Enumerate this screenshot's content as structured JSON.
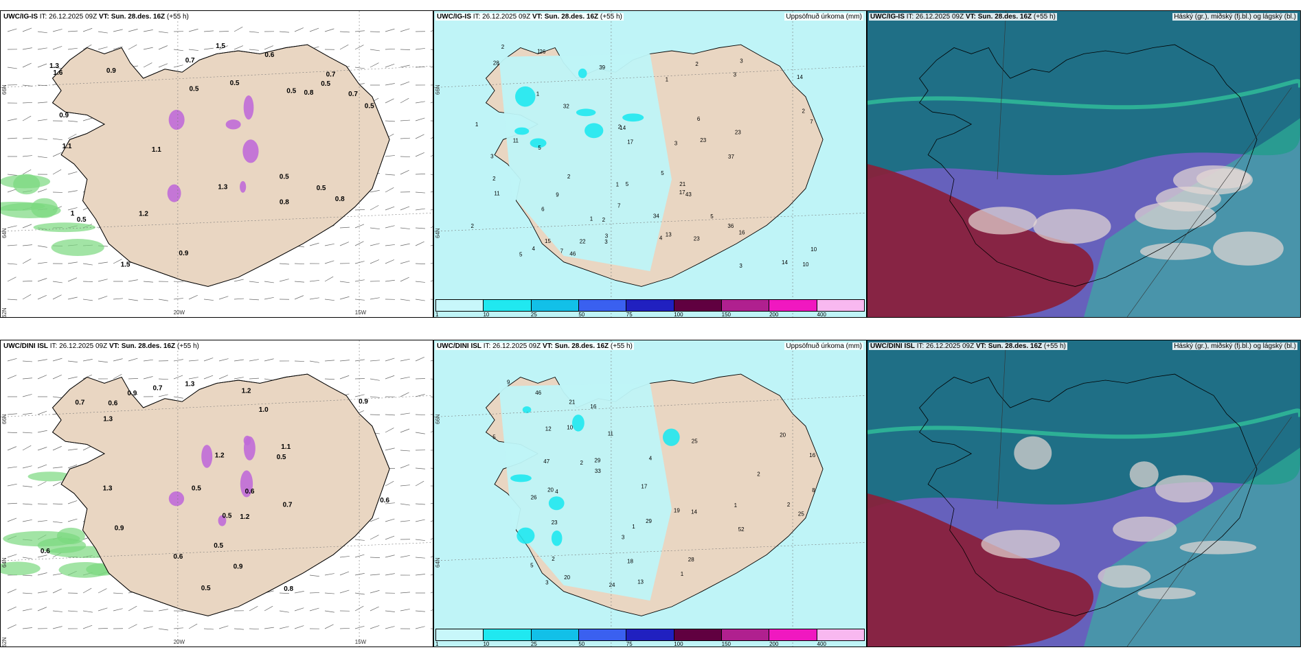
{
  "panels": [
    {
      "model": "UWC/IG-IS",
      "it_label": "IT:",
      "it_value": "26.12.2025 09Z",
      "vt_label": "VT:",
      "vt_value": "Sun. 28.des. 16Z",
      "lead": "(+55 h)",
      "right_title": "",
      "type": "wind",
      "lon_labels": [
        "20W",
        "15W"
      ],
      "lat_labels": [
        "66N",
        "64N",
        "62N"
      ],
      "values": [
        "0.5",
        "0.5",
        "0.5",
        "0.5",
        "0.6",
        "0.8",
        "0.9",
        "0.5",
        "0.7",
        "0.8",
        "1.1",
        "1.2",
        "0.7",
        "0.5",
        "0.9",
        "1",
        "1.3",
        "1.5",
        "0.9",
        "0.8",
        "0.5",
        "1.1",
        "0.7",
        "1.3",
        "1.6",
        "1.5",
        "0.5"
      ]
    },
    {
      "model": "UWC/IG-IS",
      "it_label": "IT:",
      "it_value": "26.12.2025 09Z",
      "vt_label": "VT:",
      "vt_value": "Sun. 28.des. 16Z",
      "lead": "(+55 h)",
      "right_title": "Uppsöfnuð úrkoma (mm)",
      "type": "precip",
      "lon_labels": [],
      "lat_labels": [
        "66N",
        "64N"
      ],
      "values": [
        "1",
        "6",
        "13",
        "3",
        "5",
        "7",
        "5",
        "16",
        "14",
        "14",
        "15",
        "17",
        "21",
        "26",
        "46",
        "4",
        "2",
        "3",
        "3",
        "5",
        "7",
        "11",
        "23",
        "28",
        "22",
        "32",
        "34",
        "23",
        "10",
        "7",
        "5",
        "9",
        "3",
        "2",
        "3",
        "5",
        "6",
        "36",
        "43",
        "37",
        "23",
        "39",
        "17",
        "2",
        "3",
        "1",
        "1",
        "4",
        "2",
        "10",
        "14",
        "11",
        "2",
        "2",
        "3",
        "1",
        "2",
        "2",
        "1",
        "1"
      ]
    },
    {
      "model": "UWC/IG-IS",
      "it_label": "IT:",
      "it_value": "26.12.2025 09Z",
      "vt_label": "VT:",
      "vt_value": "Sun. 28.des. 16Z",
      "lead": "(+55 h)",
      "right_title": "Háský (gr.), miðský (fj.bl.) og lágský (bl.)",
      "type": "cloud",
      "lon_labels": [],
      "lat_labels": [],
      "values": []
    },
    {
      "model": "UWC/DINI ISL",
      "it_label": "IT:",
      "it_value": "26.12.2025 09Z",
      "vt_label": "VT:",
      "vt_value": "Sun. 28.des. 16Z",
      "lead": "(+55 h)",
      "right_title": "",
      "type": "wind",
      "lon_labels": [
        "20W",
        "15W"
      ],
      "lat_labels": [
        "66N",
        "64N",
        "62N"
      ],
      "values": [
        "0.6",
        "0.6",
        "0.9",
        "0.5",
        "1.2",
        "0.6",
        "1.2",
        "0.7",
        "0.5",
        "0.9",
        "0.8",
        "0.5",
        "0.7",
        "0.9",
        "1.3",
        "0.6",
        "0.5",
        "1.1",
        "0.5",
        "0.7",
        "1.0",
        "0.6",
        "1.3",
        "0.9",
        "1.3",
        "1.2"
      ]
    },
    {
      "model": "UWC/DINI ISL",
      "it_label": "IT:",
      "it_value": "26.12.2025 09Z",
      "vt_label": "VT:",
      "vt_value": "Sun. 28.des. 16Z",
      "lead": "(+55 h)",
      "right_title": "Uppsöfnuð úrkoma (mm)",
      "type": "precip",
      "lon_labels": [],
      "lat_labels": [
        "66N",
        "64N"
      ],
      "values": [
        "1",
        "2",
        "3",
        "5",
        "10",
        "29",
        "16",
        "18",
        "20",
        "20",
        "26",
        "29",
        "23",
        "52",
        "24",
        "16",
        "19",
        "21",
        "20",
        "25",
        "17",
        "47",
        "46",
        "33",
        "28",
        "25",
        "12",
        "13",
        "14",
        "11",
        "9",
        "4",
        "2",
        "2",
        "1",
        "5",
        "8",
        "4",
        "3",
        "2",
        "1"
      ]
    },
    {
      "model": "UWC/DINI ISL",
      "it_label": "IT:",
      "it_value": "26.12.2025 09Z",
      "vt_label": "VT:",
      "vt_value": "Sun. 28.des. 16Z",
      "lead": "(+55 h)",
      "right_title": "Háský (gr.), miðský (fj.bl.) og lágský (bl.)",
      "type": "cloud",
      "lon_labels": [],
      "lat_labels": [],
      "values": []
    }
  ],
  "precip_scale": {
    "labels": [
      "1",
      "10",
      "25",
      "50",
      "75",
      "100",
      "150",
      "200",
      "400"
    ],
    "colors": [
      "#c8f7fa",
      "#20e8f0",
      "#12c0e8",
      "#3a60f0",
      "#2020c0",
      "#600040",
      "#b0208f",
      "#f018c0",
      "#f8b8f0"
    ]
  },
  "map_colors": {
    "land": "#e9d6c2",
    "sea": "#ffffff",
    "precip_light": "#bff4f7",
    "wind_green": "#7bd87f",
    "wind_green_dark": "#1b7a2a",
    "snow_purple": "#c06cd8",
    "cloud_high": "#1f6f86",
    "cloud_mid": "#6e5fc2",
    "cloud_low": "#8a1f3a",
    "cloud_teal": "#31c09a"
  }
}
